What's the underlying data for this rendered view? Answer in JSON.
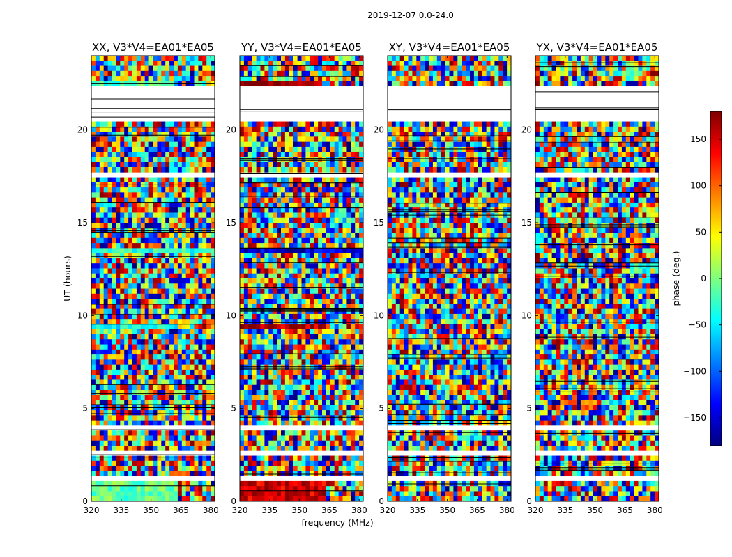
{
  "chart_data": {
    "type": "heatmap",
    "suptitle": "2019-12-07 0.0-24.0",
    "xlabel": "frequency (MHz)",
    "ylabel": "UT (hours)",
    "xlim": [
      320,
      382
    ],
    "ylim": [
      0,
      24
    ],
    "xticks": [
      320,
      335,
      350,
      365,
      380
    ],
    "yticks": [
      0,
      5,
      10,
      15,
      20
    ],
    "colorbar": {
      "label": "phase (deg.)",
      "range": [
        -180,
        180
      ],
      "ticks": [
        -150,
        -100,
        -50,
        0,
        50,
        100,
        150
      ],
      "colormap": "jet",
      "colors": [
        "#00007f",
        "#0000ff",
        "#007fff",
        "#00ffff",
        "#7fff7f",
        "#ffff00",
        "#ff7f00",
        "#ff0000",
        "#7f0000"
      ]
    },
    "panels": [
      {
        "title": "XX, V3*V4=EA01*EA05",
        "polarization": "XX"
      },
      {
        "title": "YY, V3*V4=EA01*EA05",
        "polarization": "YY"
      },
      {
        "title": "XY, V3*V4=EA01*EA05",
        "polarization": "XY"
      },
      {
        "title": "YX, V3*V4=EA01*EA05",
        "polarization": "YX"
      }
    ],
    "flagged_ut_ranges": [
      [
        22.3,
        20.4
      ],
      [
        4.2,
        3.9
      ],
      [
        2.7,
        2.5
      ],
      [
        1.4,
        1.2
      ],
      [
        17.6,
        17.4
      ],
      [
        6.9,
        6.7
      ]
    ],
    "coherent_ut_bands": [
      {
        "ut": [
          0.0,
          1.1
        ],
        "freq": [
          320,
          363
        ],
        "phase_by_panel": [
          -10,
          150,
          null,
          null
        ]
      },
      {
        "ut": [
          9.2,
          9.5
        ],
        "freq": [
          320,
          364
        ],
        "phase_by_panel": [
          -40,
          160,
          null,
          null
        ]
      },
      {
        "ut": [
          13.3,
          13.6
        ],
        "freq": [
          320,
          382
        ],
        "phase_by_panel": [
          -30,
          -150,
          null,
          null
        ]
      },
      {
        "ut": [
          22.3,
          22.5
        ],
        "freq": [
          320,
          362
        ],
        "phase_by_panel": [
          -20,
          170,
          null,
          null
        ]
      }
    ]
  }
}
